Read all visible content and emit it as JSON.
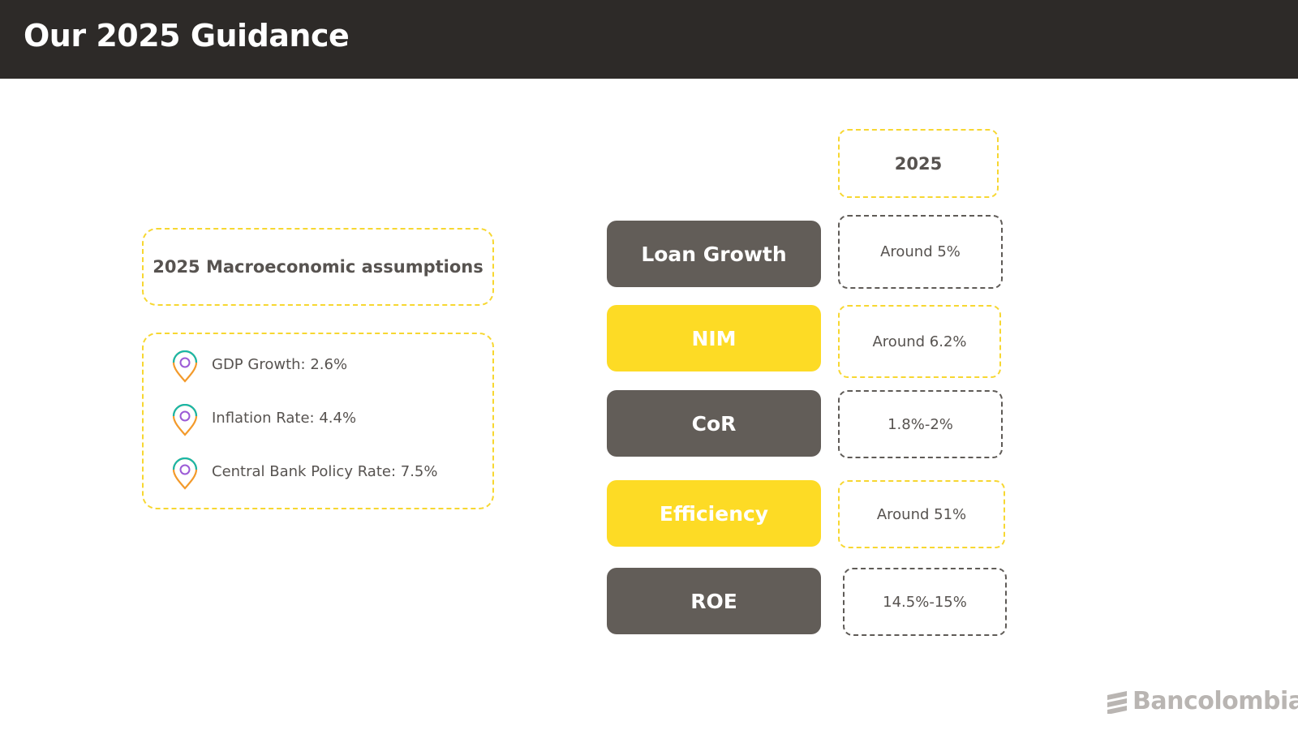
{
  "header": {
    "title": "Our 2025 Guidance"
  },
  "macro": {
    "title": "2025 Macroeconomic assumptions",
    "items": [
      {
        "label": "GDP Growth: 2.6%",
        "icon": "location-pin-icon"
      },
      {
        "label": "Inflation Rate: 4.4%",
        "icon": "location-pin-icon"
      },
      {
        "label": "Central Bank Policy Rate: 7.5%",
        "icon": "location-pin-icon"
      }
    ]
  },
  "guidance": {
    "year_label": "2025",
    "rows": [
      {
        "metric": "Loan Growth",
        "value": "Around 5%",
        "style": "dark"
      },
      {
        "metric": "NIM",
        "value": "Around 6.2%",
        "style": "yellow"
      },
      {
        "metric": "CoR",
        "value": "1.8%-2%",
        "style": "dark"
      },
      {
        "metric": "Efficiency",
        "value": "Around 51%",
        "style": "yellow"
      },
      {
        "metric": "ROE",
        "value": "14.5%-15%",
        "style": "dark"
      }
    ]
  },
  "brand": {
    "name": "Bancolombia",
    "icon": "bancolombia-logo-icon"
  },
  "colors": {
    "header_bg": "#2d2a28",
    "yellow": "#fddb25",
    "dark_box": "#625d58",
    "text": "#575350",
    "logo": "#b9b5b2"
  }
}
